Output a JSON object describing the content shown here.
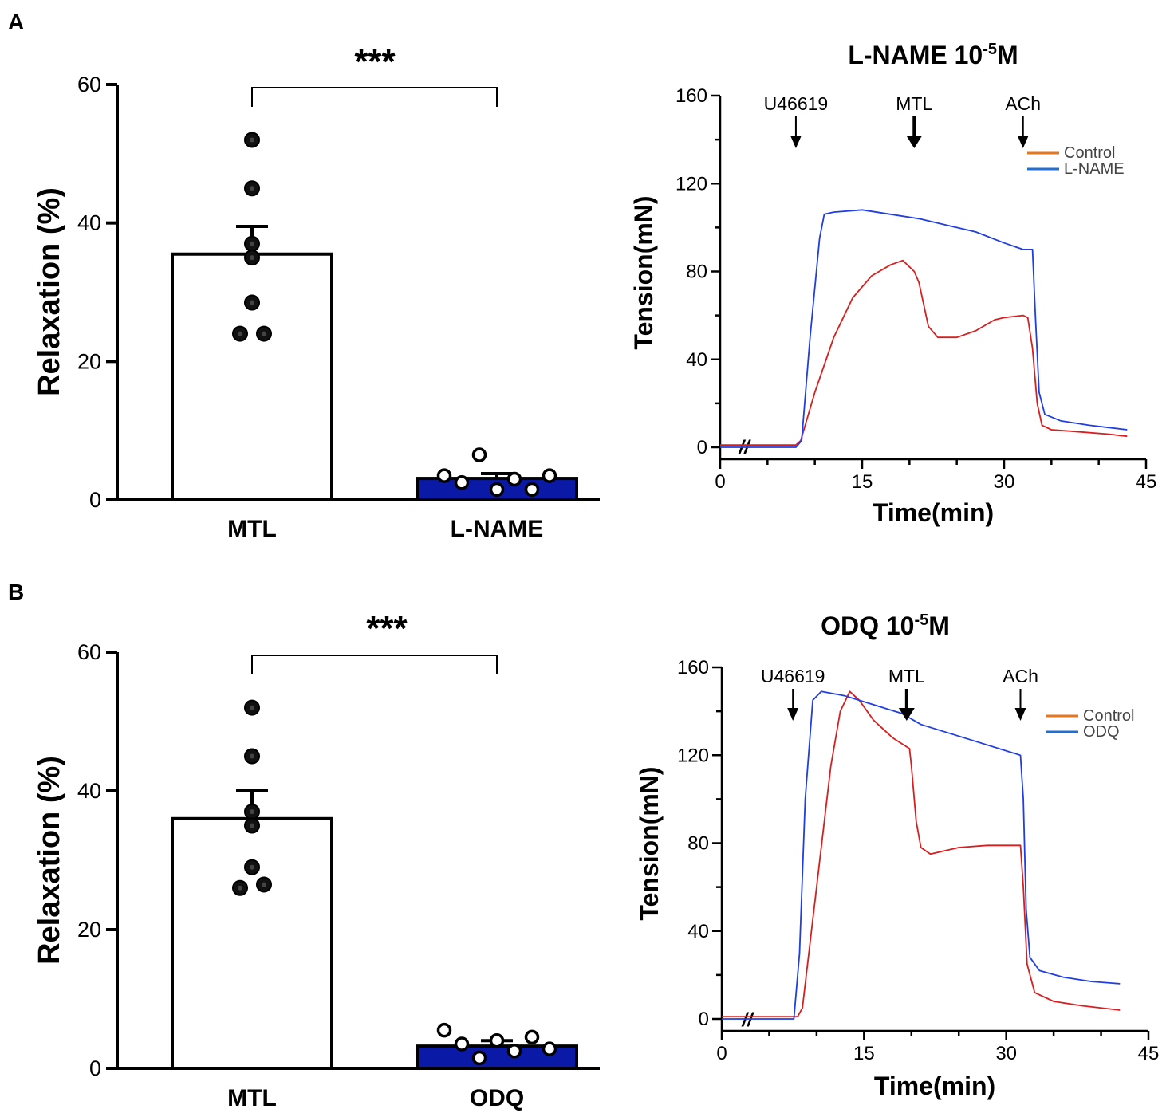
{
  "panels": [
    {
      "letter": "A",
      "bar": {
        "ylabel": "Relaxation (%)",
        "yticks": [
          0,
          20,
          40,
          60
        ],
        "ylim": [
          0,
          60
        ],
        "significance": "***",
        "categories": [
          "MTL",
          "L-NAME"
        ],
        "bars": [
          {
            "name": "MTL",
            "mean": 35.5,
            "sem": 4.0,
            "points": [
              52,
              45,
              37,
              35,
              28.5,
              24,
              24
            ],
            "fill": "#ffffff",
            "marker": "filled"
          },
          {
            "name": "L-NAME",
            "mean": 3.1,
            "sem": 0.7,
            "points": [
              3.5,
              2.5,
              6.5,
              1.5,
              3.0,
              1.5,
              3.5
            ],
            "fill": "#0a1aa6",
            "marker": "open"
          }
        ]
      },
      "trace": {
        "title": "L-NAME 10",
        "title_sup": "-5",
        "title_suffix": "M",
        "ylabel": "Tension(mN)",
        "xlabel": "Time(min)",
        "yticks": [
          0,
          40,
          80,
          120,
          160
        ],
        "xticks": [
          0,
          15,
          30,
          45
        ],
        "ylim": [
          -5,
          160
        ],
        "xlim": [
          0,
          45
        ],
        "break_mark": "//",
        "markers": [
          {
            "label": "U46619",
            "time": 8,
            "style": "thin"
          },
          {
            "label": "MTL",
            "time": 20.5,
            "style": "thick"
          },
          {
            "label": "ACh",
            "time": 32,
            "style": "thin"
          }
        ],
        "legend": [
          {
            "label": "Control",
            "color": "#e8761c"
          },
          {
            "label": "L-NAME",
            "color": "#1f6fd6"
          }
        ],
        "series": [
          {
            "name": "Control",
            "color": "#d81f1f",
            "points": [
              [
                0,
                1
              ],
              [
                8,
                1
              ],
              [
                8.5,
                3
              ],
              [
                10,
                25
              ],
              [
                12,
                50
              ],
              [
                14,
                68
              ],
              [
                16,
                78
              ],
              [
                18,
                83
              ],
              [
                19.3,
                85
              ],
              [
                20.5,
                80
              ],
              [
                21,
                75
              ],
              [
                22,
                55
              ],
              [
                23,
                50
              ],
              [
                25,
                50
              ],
              [
                27,
                53
              ],
              [
                29,
                58
              ],
              [
                30,
                59
              ],
              [
                32,
                60
              ],
              [
                32.5,
                59
              ],
              [
                33,
                45
              ],
              [
                33.5,
                20
              ],
              [
                34,
                10
              ],
              [
                35,
                8
              ],
              [
                38,
                7
              ],
              [
                41,
                6
              ],
              [
                43,
                5
              ]
            ]
          },
          {
            "name": "L-NAME",
            "color": "#1f3ee6",
            "points": [
              [
                0,
                0
              ],
              [
                8,
                0
              ],
              [
                8.6,
                3
              ],
              [
                9.5,
                50
              ],
              [
                10.5,
                95
              ],
              [
                11,
                106
              ],
              [
                12,
                107
              ],
              [
                15,
                108
              ],
              [
                18,
                106
              ],
              [
                21,
                104
              ],
              [
                24,
                101
              ],
              [
                27,
                98
              ],
              [
                30,
                93
              ],
              [
                32,
                90
              ],
              [
                33,
                90
              ],
              [
                33.3,
                60
              ],
              [
                33.7,
                25
              ],
              [
                34.3,
                15
              ],
              [
                36,
                12
              ],
              [
                39,
                10
              ],
              [
                43,
                8
              ]
            ]
          }
        ]
      }
    },
    {
      "letter": "B",
      "bar": {
        "ylabel": "Relaxation (%)",
        "yticks": [
          0,
          20,
          40,
          60
        ],
        "ylim": [
          0,
          60
        ],
        "significance": "***",
        "categories": [
          "MTL",
          "ODQ"
        ],
        "bars": [
          {
            "name": "MTL",
            "mean": 36,
            "sem": 4.0,
            "points": [
              52,
              45,
              37,
              35,
              29,
              26,
              26.5
            ],
            "fill": "#ffffff",
            "marker": "filled"
          },
          {
            "name": "ODQ",
            "mean": 3.2,
            "sem": 0.8,
            "points": [
              5.5,
              3.5,
              1.5,
              4.0,
              2.5,
              4.5,
              2.8
            ],
            "fill": "#0a1aa6",
            "marker": "open"
          }
        ]
      },
      "trace": {
        "title": "ODQ 10",
        "title_sup": "-5",
        "title_suffix": "M",
        "ylabel": "Tension(mN)",
        "xlabel": "Time(min)",
        "yticks": [
          0,
          40,
          80,
          120,
          160
        ],
        "xticks": [
          0,
          15,
          30,
          45
        ],
        "ylim": [
          -5,
          160
        ],
        "xlim": [
          0,
          45
        ],
        "break_mark": "//",
        "markers": [
          {
            "label": "U46619",
            "time": 7.5,
            "style": "thin"
          },
          {
            "label": "MTL",
            "time": 19.5,
            "style": "thick"
          },
          {
            "label": "ACh",
            "time": 31.5,
            "style": "thin"
          }
        ],
        "legend": [
          {
            "label": "Control",
            "color": "#e8761c"
          },
          {
            "label": "ODQ",
            "color": "#1f6fd6"
          }
        ],
        "series": [
          {
            "name": "Control",
            "color": "#d81f1f",
            "points": [
              [
                0,
                1
              ],
              [
                8,
                1
              ],
              [
                8.5,
                5
              ],
              [
                10,
                60
              ],
              [
                11.5,
                115
              ],
              [
                12.5,
                140
              ],
              [
                13.5,
                149
              ],
              [
                14.5,
                145
              ],
              [
                16,
                136
              ],
              [
                18,
                128
              ],
              [
                19.8,
                123
              ],
              [
                20,
                115
              ],
              [
                20.5,
                90
              ],
              [
                21,
                78
              ],
              [
                22,
                75
              ],
              [
                25,
                78
              ],
              [
                28,
                79
              ],
              [
                31.5,
                79
              ],
              [
                31.8,
                60
              ],
              [
                32.2,
                25
              ],
              [
                33,
                12
              ],
              [
                35,
                8
              ],
              [
                38,
                6
              ],
              [
                42,
                4
              ]
            ]
          },
          {
            "name": "ODQ",
            "color": "#1f3ee6",
            "points": [
              [
                0,
                0
              ],
              [
                7.6,
                0
              ],
              [
                8.2,
                30
              ],
              [
                8.8,
                100
              ],
              [
                9.6,
                145
              ],
              [
                10.5,
                149
              ],
              [
                13,
                147
              ],
              [
                16,
                143
              ],
              [
                19,
                139
              ],
              [
                21,
                134
              ],
              [
                24,
                130
              ],
              [
                27,
                126
              ],
              [
                31.5,
                120
              ],
              [
                31.8,
                100
              ],
              [
                32.1,
                50
              ],
              [
                32.5,
                28
              ],
              [
                33.5,
                22
              ],
              [
                36,
                19
              ],
              [
                39,
                17
              ],
              [
                42,
                16
              ]
            ]
          }
        ]
      }
    }
  ]
}
